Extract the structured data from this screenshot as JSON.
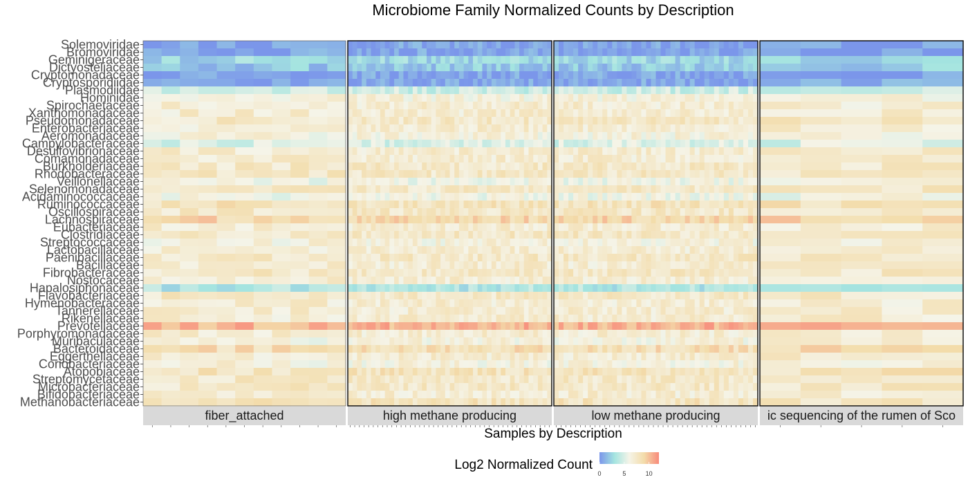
{
  "chart_data": {
    "type": "heatmap",
    "title": "Microbiome Family Normalized Counts by Description",
    "xlabel": "Samples by Description",
    "ylabel": "",
    "legend": {
      "title": "Log2 Normalized Count",
      "ticks": [
        0,
        5,
        10
      ],
      "range": [
        0,
        12
      ],
      "colors": [
        "#7b96ea",
        "#a4e4e0",
        "#f5f4e8",
        "#f3dcaa",
        "#f88a7a"
      ],
      "placement": "bottom"
    },
    "families": [
      "Solemoviridae",
      "Bromoviridae",
      "Geminigeraceae",
      "Dictyosteliaceae",
      "Cryptomonadaceae",
      "Cryptosporidiidae",
      "Plasmodiidae",
      "Hominidae",
      "Spirochaetaceae",
      "Xanthomonadaceae",
      "Pseudomonadaceae",
      "Enterobacteriaceae",
      "Aeromonadaceae",
      "Campylobacteraceae",
      "Desulfovibrionaceae",
      "Comamonadaceae",
      "Burkholderiaceae",
      "Rhodobacteraceae",
      "Veillonellaceae",
      "Selenomonadaceae",
      "Acidaminococcaceae",
      "Ruminococcaceae",
      "Oscillospiraceae",
      "Lachnospiraceae",
      "Eubacteriaceae",
      "Clostridiaceae",
      "Streptococcaceae",
      "Lactobacillaceae",
      "Paenibacillaceae",
      "Bacillaceae",
      "Fibrobacteraceae",
      "Nostocaceae",
      "Hapalosiphonaceae",
      "Flavobacteriaceae",
      "Hymenobacteraceae",
      "Tannerellaceae",
      "Rikenellaceae",
      "Prevotellaceae",
      "Porphyromonadaceae",
      "Muribaculaceae",
      "Bacteroidaceae",
      "Eggerthellaceae",
      "Coriobacteriaceae",
      "Atopobiaceae",
      "Streptomycetaceae",
      "Microbacteriaceae",
      "Bifidobacteriaceae",
      "Methanobacteriaceae"
    ],
    "facets": [
      {
        "name": "fiber_attached",
        "n_samples": 11
      },
      {
        "name": "high methane producing",
        "n_samples": 44
      },
      {
        "name": "low methane producing",
        "n_samples": 42
      },
      {
        "name": "ic sequencing of the rumen of Sco",
        "n_samples": 5
      }
    ],
    "family_means": [
      0.5,
      0.5,
      2.5,
      2.0,
      0.5,
      0.5,
      4.5,
      6.5,
      7.0,
      7.0,
      7.5,
      7.0,
      6.5,
      5.0,
      7.0,
      7.0,
      7.5,
      7.5,
      6.0,
      7.5,
      6.0,
      8.0,
      7.5,
      9.0,
      7.0,
      7.5,
      6.5,
      7.0,
      7.5,
      7.0,
      7.5,
      7.0,
      3.5,
      7.5,
      7.0,
      7.0,
      7.0,
      10.5,
      7.0,
      6.5,
      8.5,
      7.0,
      6.5,
      8.0,
      7.5,
      7.5,
      7.0,
      8.0
    ],
    "grid": false
  }
}
